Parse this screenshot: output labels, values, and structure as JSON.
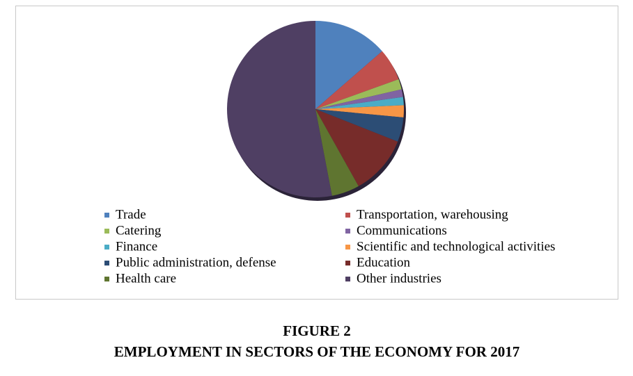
{
  "chart_data": {
    "type": "pie",
    "title": "FIGURE 2",
    "subtitle": "EMPLOYMENT IN SECTORS OF THE ECONOMY FOR 2017",
    "categories": [
      "Trade",
      "Transportation, warehousing",
      "Catering",
      "Communications",
      "Finance",
      "Scientific and technological activities",
      "Public administration, defense",
      "Education",
      "Health care",
      "Other industries"
    ],
    "values": [
      13.6,
      5.9,
      1.9,
      1.4,
      1.5,
      2.2,
      4.5,
      10.9,
      5.1,
      53.0
    ],
    "colors": [
      "#4f81bd",
      "#c0504d",
      "#9bbb59",
      "#8064a2",
      "#4bacc6",
      "#f79646",
      "#2c4d75",
      "#772c2a",
      "#5f7530",
      "#4f3f63"
    ]
  }
}
